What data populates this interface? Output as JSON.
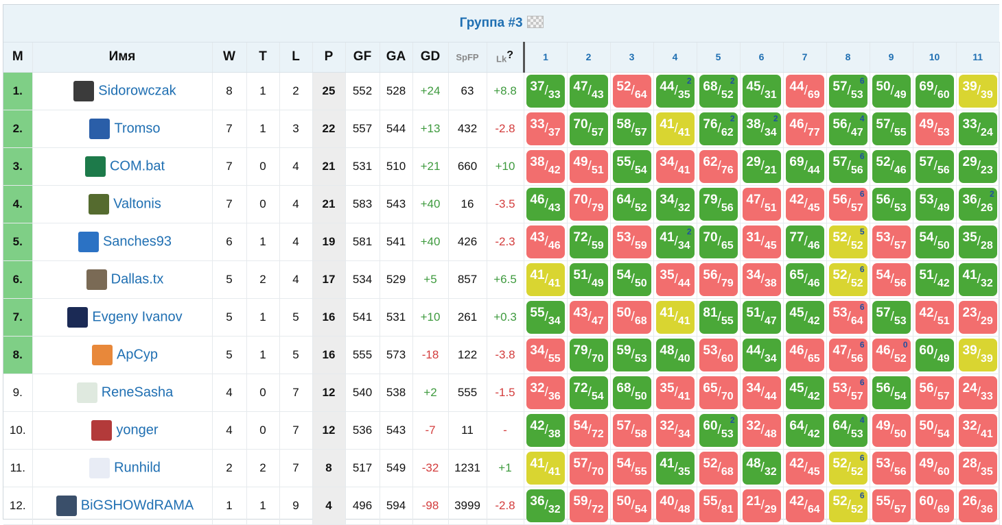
{
  "title": "Группа #3",
  "headers": {
    "m": "M",
    "name": "Имя",
    "w": "W",
    "t": "T",
    "l": "L",
    "p": "P",
    "gf": "GF",
    "ga": "GA",
    "gd": "GD",
    "spfp": "SpFP",
    "lk": "Lk",
    "lk_q": "?"
  },
  "opponents": [
    "1",
    "2",
    "3",
    "4",
    "5",
    "6",
    "7",
    "8",
    "9",
    "10",
    "11"
  ],
  "colors": {
    "win": "#4aa838",
    "loss": "#f26e6e",
    "draw": "#d9d531",
    "top8": "#7fcf86",
    "accent": "#1f6fb2"
  },
  "rows": [
    {
      "m": "1.",
      "name": "Sidorowczak",
      "avatar": "avatar-photo",
      "w": "8",
      "t": "1",
      "l": "2",
      "p": "25",
      "gf": "552",
      "ga": "528",
      "gd": "+24",
      "spfp": "63",
      "lk": "+8.8",
      "top": true,
      "games": [
        {
          "a": "37",
          "b": "33",
          "r": "W"
        },
        {
          "a": "47",
          "b": "43",
          "r": "W"
        },
        {
          "a": "52",
          "b": "64",
          "r": "L"
        },
        {
          "a": "44",
          "b": "35",
          "r": "W",
          "n": "2"
        },
        {
          "a": "68",
          "b": "52",
          "r": "W",
          "n": "2"
        },
        {
          "a": "45",
          "b": "31",
          "r": "W"
        },
        {
          "a": "44",
          "b": "69",
          "r": "L"
        },
        {
          "a": "57",
          "b": "53",
          "r": "W",
          "n": "6"
        },
        {
          "a": "50",
          "b": "49",
          "r": "W"
        },
        {
          "a": "69",
          "b": "60",
          "r": "W"
        },
        {
          "a": "39",
          "b": "39",
          "r": "D"
        }
      ]
    },
    {
      "m": "2.",
      "name": "Tromso",
      "avatar": "avatar-12",
      "w": "7",
      "t": "1",
      "l": "3",
      "p": "22",
      "gf": "557",
      "ga": "544",
      "gd": "+13",
      "spfp": "432",
      "lk": "-2.8",
      "top": true,
      "games": [
        {
          "a": "33",
          "b": "37",
          "r": "L"
        },
        {
          "a": "70",
          "b": "57",
          "r": "W"
        },
        {
          "a": "58",
          "b": "57",
          "r": "W"
        },
        {
          "a": "41",
          "b": "41",
          "r": "D"
        },
        {
          "a": "76",
          "b": "62",
          "r": "W",
          "n": "2"
        },
        {
          "a": "38",
          "b": "34",
          "r": "W",
          "n": "2"
        },
        {
          "a": "46",
          "b": "77",
          "r": "L"
        },
        {
          "a": "56",
          "b": "47",
          "r": "W",
          "n": "4"
        },
        {
          "a": "57",
          "b": "55",
          "r": "W"
        },
        {
          "a": "49",
          "b": "53",
          "r": "L"
        },
        {
          "a": "33",
          "b": "24",
          "r": "W"
        }
      ]
    },
    {
      "m": "3.",
      "name": "COM.bat",
      "avatar": "avatar-37",
      "w": "7",
      "t": "0",
      "l": "4",
      "p": "21",
      "gf": "531",
      "ga": "510",
      "gd": "+21",
      "spfp": "660",
      "lk": "+10",
      "top": true,
      "games": [
        {
          "a": "38",
          "b": "42",
          "r": "L"
        },
        {
          "a": "49",
          "b": "51",
          "r": "L"
        },
        {
          "a": "55",
          "b": "54",
          "r": "W"
        },
        {
          "a": "34",
          "b": "41",
          "r": "L"
        },
        {
          "a": "62",
          "b": "76",
          "r": "L"
        },
        {
          "a": "29",
          "b": "21",
          "r": "W"
        },
        {
          "a": "69",
          "b": "44",
          "r": "W"
        },
        {
          "a": "57",
          "b": "56",
          "r": "W",
          "n": "6"
        },
        {
          "a": "52",
          "b": "46",
          "r": "W"
        },
        {
          "a": "57",
          "b": "56",
          "r": "W"
        },
        {
          "a": "29",
          "b": "23",
          "r": "W"
        }
      ]
    },
    {
      "m": "4.",
      "name": "Valtonis",
      "avatar": "avatar-photo2",
      "w": "7",
      "t": "0",
      "l": "4",
      "p": "21",
      "gf": "583",
      "ga": "543",
      "gd": "+40",
      "spfp": "16",
      "lk": "-3.5",
      "top": true,
      "games": [
        {
          "a": "46",
          "b": "43",
          "r": "W"
        },
        {
          "a": "70",
          "b": "79",
          "r": "L"
        },
        {
          "a": "64",
          "b": "52",
          "r": "W"
        },
        {
          "a": "34",
          "b": "32",
          "r": "W"
        },
        {
          "a": "79",
          "b": "56",
          "r": "W"
        },
        {
          "a": "47",
          "b": "51",
          "r": "L"
        },
        {
          "a": "42",
          "b": "45",
          "r": "L"
        },
        {
          "a": "56",
          "b": "57",
          "r": "L",
          "n": "6"
        },
        {
          "a": "56",
          "b": "53",
          "r": "W"
        },
        {
          "a": "53",
          "b": "49",
          "r": "W"
        },
        {
          "a": "36",
          "b": "26",
          "r": "W",
          "n": "2"
        }
      ]
    },
    {
      "m": "5.",
      "name": "Sanches93",
      "avatar": "avatar-27",
      "w": "6",
      "t": "1",
      "l": "4",
      "p": "19",
      "gf": "581",
      "ga": "541",
      "gd": "+40",
      "spfp": "426",
      "lk": "-2.3",
      "top": true,
      "games": [
        {
          "a": "43",
          "b": "46",
          "r": "L"
        },
        {
          "a": "72",
          "b": "59",
          "r": "W"
        },
        {
          "a": "53",
          "b": "59",
          "r": "L"
        },
        {
          "a": "41",
          "b": "34",
          "r": "W",
          "n": "2"
        },
        {
          "a": "70",
          "b": "65",
          "r": "W"
        },
        {
          "a": "31",
          "b": "45",
          "r": "L"
        },
        {
          "a": "77",
          "b": "46",
          "r": "W"
        },
        {
          "a": "52",
          "b": "52",
          "r": "D",
          "n": "5"
        },
        {
          "a": "53",
          "b": "57",
          "r": "L"
        },
        {
          "a": "54",
          "b": "50",
          "r": "W"
        },
        {
          "a": "35",
          "b": "28",
          "r": "W"
        }
      ]
    },
    {
      "m": "6.",
      "name": "Dallas.tx",
      "avatar": "avatar-logo",
      "w": "5",
      "t": "2",
      "l": "4",
      "p": "17",
      "gf": "534",
      "ga": "529",
      "gd": "+5",
      "spfp": "857",
      "lk": "+6.5",
      "top": true,
      "games": [
        {
          "a": "41",
          "b": "41",
          "r": "D"
        },
        {
          "a": "51",
          "b": "49",
          "r": "W"
        },
        {
          "a": "54",
          "b": "50",
          "r": "W"
        },
        {
          "a": "35",
          "b": "44",
          "r": "L"
        },
        {
          "a": "56",
          "b": "79",
          "r": "L"
        },
        {
          "a": "34",
          "b": "38",
          "r": "L"
        },
        {
          "a": "65",
          "b": "46",
          "r": "W"
        },
        {
          "a": "52",
          "b": "52",
          "r": "D",
          "n": "6"
        },
        {
          "a": "54",
          "b": "56",
          "r": "L"
        },
        {
          "a": "51",
          "b": "42",
          "r": "W"
        },
        {
          "a": "41",
          "b": "32",
          "r": "W"
        }
      ]
    },
    {
      "m": "7.",
      "name": "Evgeny Ivanov",
      "avatar": "avatar-25",
      "w": "5",
      "t": "1",
      "l": "5",
      "p": "16",
      "gf": "541",
      "ga": "531",
      "gd": "+10",
      "spfp": "261",
      "lk": "+0.3",
      "top": true,
      "games": [
        {
          "a": "55",
          "b": "34",
          "r": "W"
        },
        {
          "a": "43",
          "b": "47",
          "r": "L"
        },
        {
          "a": "50",
          "b": "68",
          "r": "L"
        },
        {
          "a": "41",
          "b": "41",
          "r": "D"
        },
        {
          "a": "81",
          "b": "55",
          "r": "W"
        },
        {
          "a": "51",
          "b": "47",
          "r": "W"
        },
        {
          "a": "45",
          "b": "42",
          "r": "W"
        },
        {
          "a": "53",
          "b": "64",
          "r": "L",
          "n": "6"
        },
        {
          "a": "57",
          "b": "53",
          "r": "W"
        },
        {
          "a": "42",
          "b": "51",
          "r": "L"
        },
        {
          "a": "23",
          "b": "29",
          "r": "L"
        }
      ]
    },
    {
      "m": "8.",
      "name": "ApCyp",
      "avatar": "avatar-shirt",
      "w": "5",
      "t": "1",
      "l": "5",
      "p": "16",
      "gf": "555",
      "ga": "573",
      "gd": "-18",
      "spfp": "122",
      "lk": "-3.8",
      "top": true,
      "games": [
        {
          "a": "34",
          "b": "55",
          "r": "L"
        },
        {
          "a": "79",
          "b": "70",
          "r": "W"
        },
        {
          "a": "59",
          "b": "53",
          "r": "W"
        },
        {
          "a": "48",
          "b": "40",
          "r": "W"
        },
        {
          "a": "53",
          "b": "60",
          "r": "L"
        },
        {
          "a": "44",
          "b": "34",
          "r": "W"
        },
        {
          "a": "46",
          "b": "65",
          "r": "L"
        },
        {
          "a": "47",
          "b": "56",
          "r": "L",
          "n": "6"
        },
        {
          "a": "46",
          "b": "52",
          "r": "L",
          "n": "0"
        },
        {
          "a": "60",
          "b": "49",
          "r": "W"
        },
        {
          "a": "39",
          "b": "39",
          "r": "D"
        }
      ]
    },
    {
      "m": "9.",
      "name": "ReneSasha",
      "avatar": "avatar-4",
      "w": "4",
      "t": "0",
      "l": "7",
      "p": "12",
      "gf": "540",
      "ga": "538",
      "gd": "+2",
      "spfp": "555",
      "lk": "-1.5",
      "top": false,
      "games": [
        {
          "a": "32",
          "b": "36",
          "r": "L"
        },
        {
          "a": "72",
          "b": "54",
          "r": "W"
        },
        {
          "a": "68",
          "b": "50",
          "r": "W"
        },
        {
          "a": "35",
          "b": "41",
          "r": "L"
        },
        {
          "a": "65",
          "b": "70",
          "r": "L"
        },
        {
          "a": "34",
          "b": "44",
          "r": "L"
        },
        {
          "a": "45",
          "b": "42",
          "r": "W"
        },
        {
          "a": "53",
          "b": "57",
          "r": "L",
          "n": "6"
        },
        {
          "a": "56",
          "b": "54",
          "r": "W"
        },
        {
          "a": "56",
          "b": "57",
          "r": "L"
        },
        {
          "a": "24",
          "b": "33",
          "r": "L"
        }
      ]
    },
    {
      "m": "10.",
      "name": "yonger",
      "avatar": "avatar-photo3",
      "w": "4",
      "t": "0",
      "l": "7",
      "p": "12",
      "gf": "536",
      "ga": "543",
      "gd": "-7",
      "spfp": "11",
      "lk": "-",
      "top": false,
      "games": [
        {
          "a": "42",
          "b": "38",
          "r": "W"
        },
        {
          "a": "54",
          "b": "72",
          "r": "L"
        },
        {
          "a": "57",
          "b": "58",
          "r": "L"
        },
        {
          "a": "32",
          "b": "34",
          "r": "L"
        },
        {
          "a": "60",
          "b": "53",
          "r": "W",
          "n": "2"
        },
        {
          "a": "32",
          "b": "48",
          "r": "L"
        },
        {
          "a": "64",
          "b": "42",
          "r": "W"
        },
        {
          "a": "64",
          "b": "53",
          "r": "W",
          "n": "4"
        },
        {
          "a": "49",
          "b": "50",
          "r": "L"
        },
        {
          "a": "50",
          "b": "54",
          "r": "L"
        },
        {
          "a": "32",
          "b": "41",
          "r": "L"
        }
      ]
    },
    {
      "m": "11.",
      "name": "Runhild",
      "avatar": "avatar-1",
      "w": "2",
      "t": "2",
      "l": "7",
      "p": "8",
      "gf": "517",
      "ga": "549",
      "gd": "-32",
      "spfp": "1231",
      "lk": "+1",
      "top": false,
      "games": [
        {
          "a": "41",
          "b": "41",
          "r": "D"
        },
        {
          "a": "57",
          "b": "70",
          "r": "L"
        },
        {
          "a": "54",
          "b": "55",
          "r": "L"
        },
        {
          "a": "41",
          "b": "35",
          "r": "W"
        },
        {
          "a": "52",
          "b": "68",
          "r": "L"
        },
        {
          "a": "48",
          "b": "32",
          "r": "W"
        },
        {
          "a": "42",
          "b": "45",
          "r": "L"
        },
        {
          "a": "52",
          "b": "52",
          "r": "D",
          "n": "6"
        },
        {
          "a": "53",
          "b": "56",
          "r": "L"
        },
        {
          "a": "49",
          "b": "60",
          "r": "L"
        },
        {
          "a": "28",
          "b": "35",
          "r": "L"
        }
      ]
    },
    {
      "m": "12.",
      "name": "BiGSHOWdRAMA",
      "avatar": "avatar-photo4",
      "w": "1",
      "t": "1",
      "l": "9",
      "p": "4",
      "gf": "496",
      "ga": "594",
      "gd": "-98",
      "spfp": "3999",
      "lk": "-2.8",
      "top": false,
      "games": [
        {
          "a": "36",
          "b": "32",
          "r": "W"
        },
        {
          "a": "59",
          "b": "72",
          "r": "L"
        },
        {
          "a": "50",
          "b": "54",
          "r": "L"
        },
        {
          "a": "40",
          "b": "48",
          "r": "L"
        },
        {
          "a": "55",
          "b": "81",
          "r": "L"
        },
        {
          "a": "21",
          "b": "29",
          "r": "L"
        },
        {
          "a": "42",
          "b": "64",
          "r": "L"
        },
        {
          "a": "52",
          "b": "52",
          "r": "D",
          "n": "6"
        },
        {
          "a": "55",
          "b": "57",
          "r": "L"
        },
        {
          "a": "60",
          "b": "69",
          "r": "L"
        },
        {
          "a": "26",
          "b": "36",
          "r": "L"
        }
      ]
    }
  ]
}
